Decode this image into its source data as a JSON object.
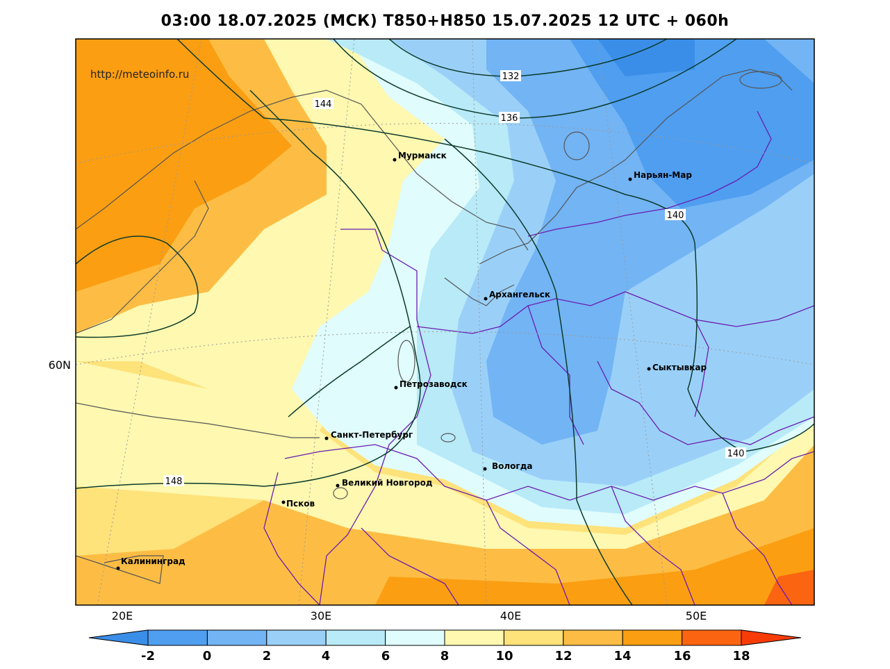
{
  "title": "03:00 18.07.2025 (МСК) T850+H850 15.07.2025 12 UTC + 060h",
  "watermark": "http://meteoinfo.ru",
  "lat_label": "60N",
  "lon_labels": [
    "20E",
    "30E",
    "40E",
    "50E"
  ],
  "contours": [
    {
      "value": "132"
    },
    {
      "value": "136"
    },
    {
      "value": "140"
    },
    {
      "value": "144"
    },
    {
      "value": "148"
    },
    {
      "value": "140"
    }
  ],
  "cities": [
    {
      "name": "Мурманск"
    },
    {
      "name": "Нарьян-Мар"
    },
    {
      "name": "Архангельск"
    },
    {
      "name": "Сыктывкар"
    },
    {
      "name": "Петрозаводск"
    },
    {
      "name": "Санкт-Петербург"
    },
    {
      "name": "Вологда"
    },
    {
      "name": "Великий Новгород"
    },
    {
      "name": "Псков"
    },
    {
      "name": "Калининград"
    }
  ],
  "colorbar": {
    "labels": [
      "-2",
      "0",
      "2",
      "4",
      "6",
      "8",
      "10",
      "12",
      "14",
      "16",
      "18"
    ],
    "colors": [
      "#3a8ee8",
      "#4f9ef0",
      "#72b4f4",
      "#9ad0f8",
      "#b8eaf8",
      "#e0fcfc",
      "#fef8b0",
      "#fee27a",
      "#fdbd44",
      "#fb9e12",
      "#fb6410",
      "#f83c08"
    ]
  }
}
